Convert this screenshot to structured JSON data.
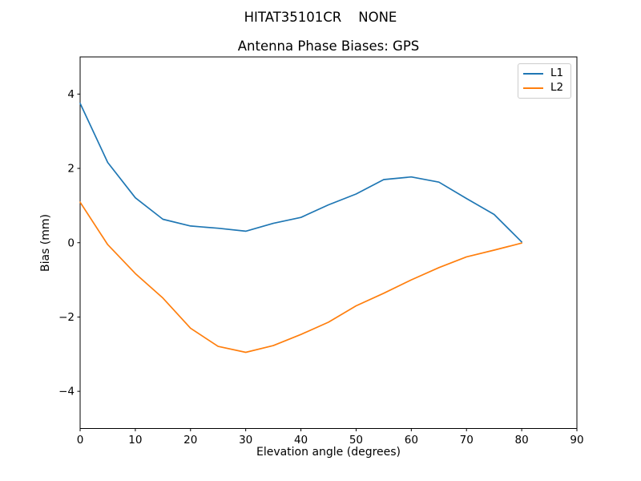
{
  "figure": {
    "suptitle": "HITAT35101CR    NONE",
    "background_color": "#ffffff",
    "text_color": "#000000",
    "axes_edge_color": "#000000"
  },
  "chart_data": {
    "type": "line",
    "title": "Antenna Phase Biases: GPS",
    "xlabel": "Elevation angle (degrees)",
    "ylabel": "Bias (mm)",
    "xlim": [
      0,
      90
    ],
    "ylim": [
      -5,
      5
    ],
    "xticks": [
      0,
      10,
      20,
      30,
      40,
      50,
      60,
      70,
      80,
      90
    ],
    "yticks": [
      -4,
      -2,
      0,
      2,
      4
    ],
    "grid": false,
    "legend": {
      "position": "upper right",
      "entries": [
        "L1",
        "L2"
      ]
    },
    "x": [
      0,
      5,
      10,
      15,
      20,
      25,
      30,
      35,
      40,
      45,
      50,
      55,
      60,
      65,
      70,
      75,
      80
    ],
    "series": [
      {
        "name": "L1",
        "color": "#1f77b4",
        "values": [
          3.75,
          2.16,
          1.21,
          0.63,
          0.45,
          0.39,
          0.31,
          0.52,
          0.68,
          1.02,
          1.31,
          1.7,
          1.77,
          1.63,
          1.19,
          0.76,
          0.02
        ]
      },
      {
        "name": "L2",
        "color": "#ff7f0e",
        "values": [
          1.09,
          -0.05,
          -0.83,
          -1.49,
          -2.3,
          -2.79,
          -2.95,
          -2.77,
          -2.47,
          -2.14,
          -1.7,
          -1.36,
          -1.0,
          -0.67,
          -0.38,
          -0.2,
          -0.01
        ]
      }
    ]
  }
}
